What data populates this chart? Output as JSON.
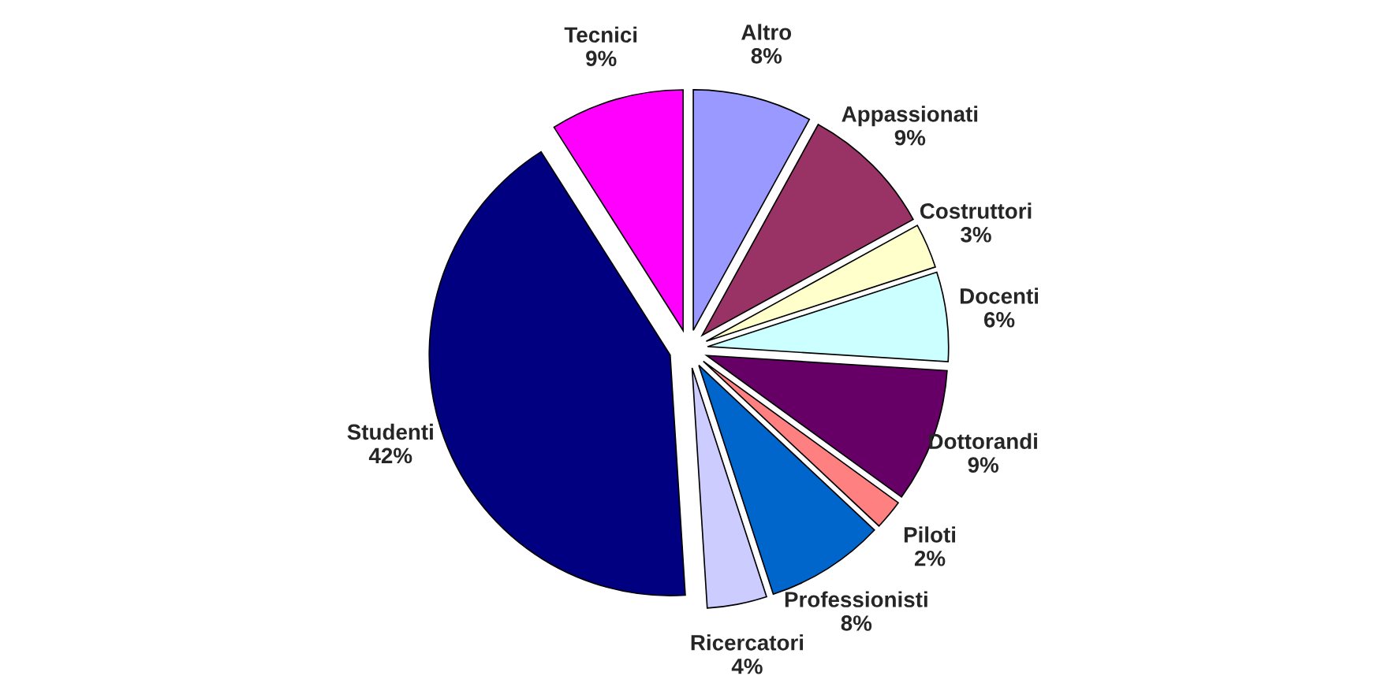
{
  "chart_data": {
    "type": "pie",
    "categories": [
      "Altro",
      "Appassionati",
      "Costruttori",
      "Docenti",
      "Dottorandi",
      "Piloti",
      "Professionisti",
      "Ricercatori",
      "Studenti",
      "Tecnici"
    ],
    "values": [
      8,
      9,
      3,
      6,
      9,
      2,
      8,
      4,
      42,
      9
    ],
    "value_labels": [
      "8%",
      "9%",
      "3%",
      "6%",
      "9%",
      "2%",
      "8%",
      "4%",
      "42%",
      "9%"
    ],
    "colors": [
      "#9999ff",
      "#993366",
      "#ffffcc",
      "#ccffff",
      "#660066",
      "#ff8080",
      "#0066cc",
      "#ccccff",
      "#000080",
      "#ff00ff"
    ],
    "legend": false
  }
}
